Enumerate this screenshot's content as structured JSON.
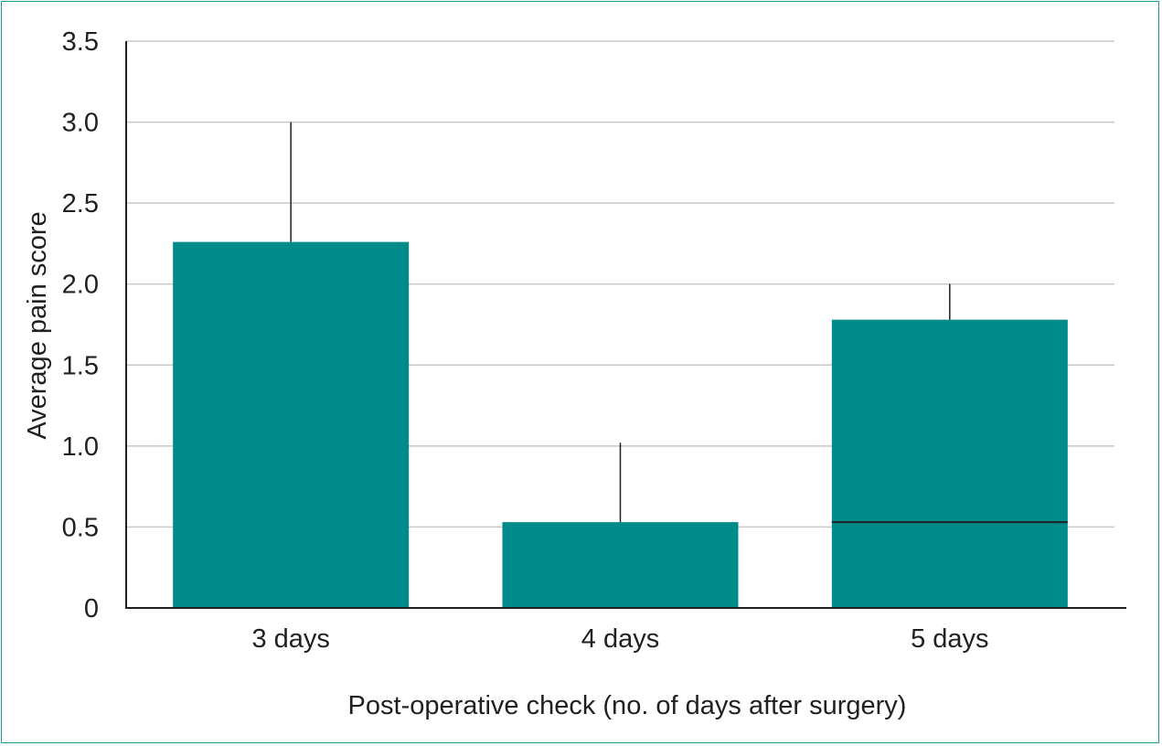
{
  "chart_data": {
    "type": "bar",
    "title": "",
    "xlabel": "Post-operative check (no. of days after surgery)",
    "ylabel": "Average pain score",
    "categories": [
      "3 days",
      "4 days",
      "5 days"
    ],
    "values": [
      2.26,
      0.53,
      1.78
    ],
    "error_upper": [
      3.0,
      1.02,
      2.0
    ],
    "reference_line": {
      "category": "5 days",
      "value": 0.53
    },
    "ylim": [
      0,
      3.5
    ],
    "yticks": [
      {
        "value": 0,
        "label": "0"
      },
      {
        "value": 0.5,
        "label": "0.5"
      },
      {
        "value": 1.0,
        "label": "1.0"
      },
      {
        "value": 1.5,
        "label": "1.5"
      },
      {
        "value": 2.0,
        "label": "2.0"
      },
      {
        "value": 2.5,
        "label": "2.5"
      },
      {
        "value": 3.0,
        "label": "3.0"
      },
      {
        "value": 3.5,
        "label": "3.5"
      }
    ],
    "grid": true,
    "legend": "none",
    "colors": {
      "bar": "#008b8b",
      "grid": "#c8c8c8",
      "axis": "#231f20",
      "frame": "#1a9a96"
    }
  }
}
